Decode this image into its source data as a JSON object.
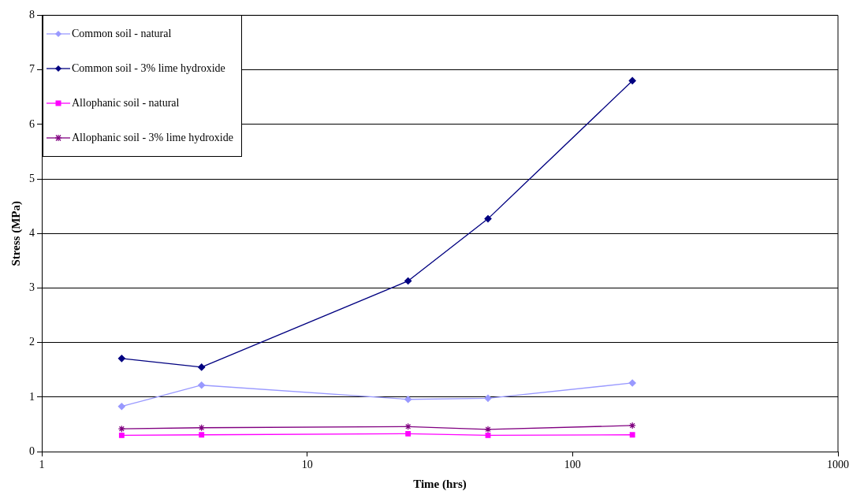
{
  "chart_data": {
    "type": "line",
    "xlabel": "Time (hrs)",
    "ylabel": "Stress (MPa)",
    "log": "x",
    "xlim": [
      1,
      1000
    ],
    "xticks": [
      1,
      10,
      100,
      1000
    ],
    "ylim": [
      0,
      8
    ],
    "yticks": [
      0,
      1,
      2,
      3,
      4,
      5,
      6,
      7,
      8
    ],
    "grid": "y",
    "legend": "top left",
    "series": [
      {
        "name": "Common soil - natural",
        "color": "#9999ff",
        "marker": "diamond",
        "x": [
          2,
          4,
          24,
          48,
          168
        ],
        "values": [
          0.83,
          1.22,
          0.96,
          0.98,
          1.26
        ]
      },
      {
        "name": "Common soil - 3% lime hydroxide",
        "color": "#000080",
        "marker": "diamond",
        "x": [
          2,
          4,
          24,
          48,
          168
        ],
        "values": [
          1.71,
          1.55,
          3.13,
          4.27,
          6.8
        ]
      },
      {
        "name": "Allophanic soil - natural",
        "color": "#ff00ff",
        "marker": "square",
        "x": [
          2,
          4,
          24,
          48,
          168
        ],
        "values": [
          0.3,
          0.31,
          0.33,
          0.3,
          0.31
        ]
      },
      {
        "name": "Allophanic soil - 3% lime hydroxide",
        "color": "#800080",
        "marker": "cross",
        "x": [
          2,
          4,
          24,
          48,
          168
        ],
        "values": [
          0.42,
          0.44,
          0.46,
          0.41,
          0.48
        ]
      }
    ]
  }
}
